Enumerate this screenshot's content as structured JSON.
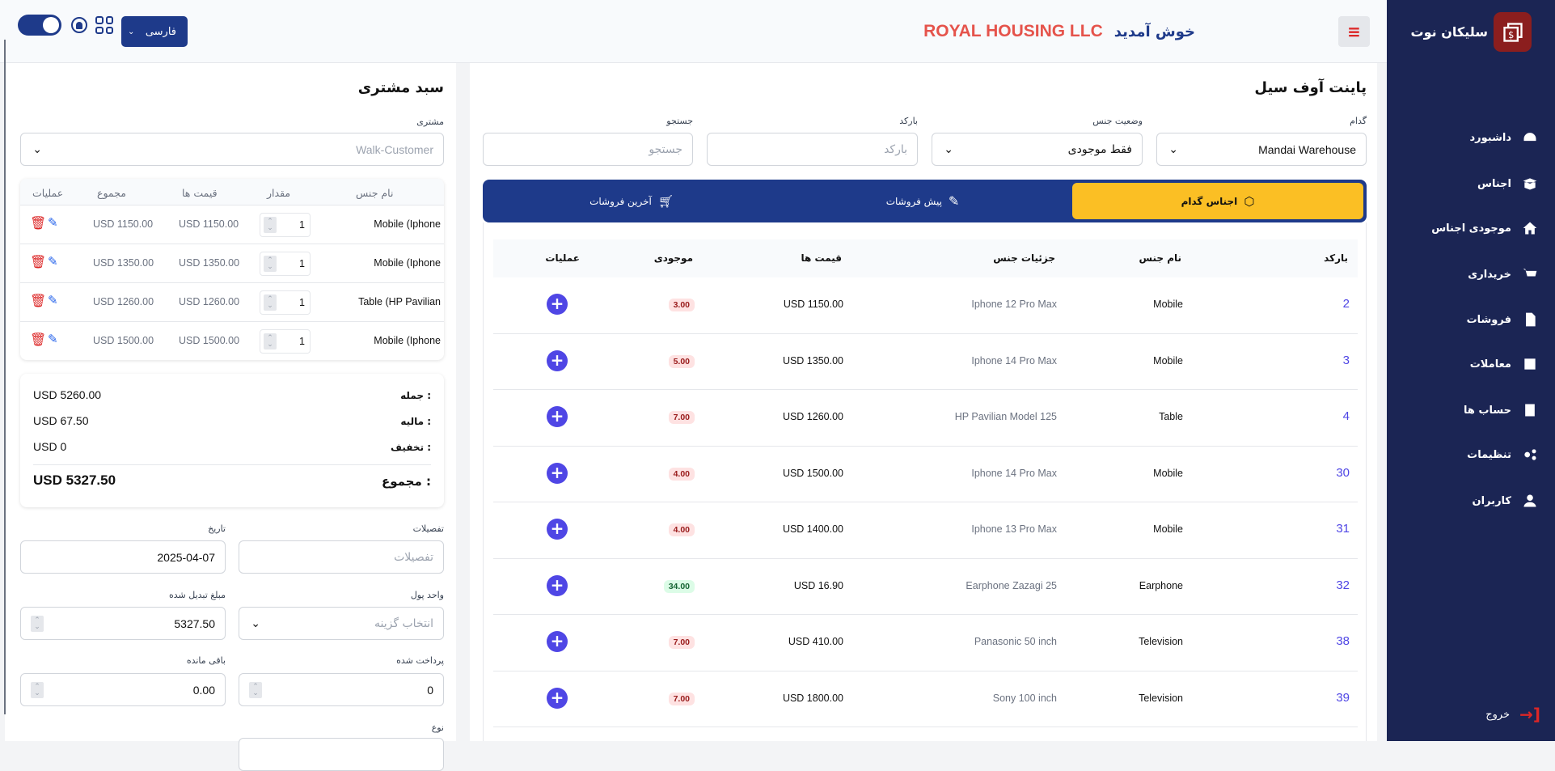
{
  "header": {
    "welcome": "خوش آمدید",
    "company": "ROYAL HOUSING LLC",
    "language": "فارسی"
  },
  "sidebar": {
    "brand": "سلیکان نوت",
    "items": [
      {
        "label": "داشبورد",
        "icon": "dashboard-icon"
      },
      {
        "label": "اجناس",
        "icon": "box-open-icon"
      },
      {
        "label": "موجودی اجناس",
        "icon": "warehouse-icon"
      },
      {
        "label": "خریداری",
        "icon": "cart-icon"
      },
      {
        "label": "فروشات",
        "icon": "invoice-dollar-icon"
      },
      {
        "label": "معاملات",
        "icon": "transaction-icon"
      },
      {
        "label": "حساب ها",
        "icon": "accounts-icon"
      },
      {
        "label": "تنظیمات",
        "icon": "gears-icon"
      },
      {
        "label": "کاربران",
        "icon": "user-icon"
      }
    ],
    "logout": "خروج"
  },
  "cart": {
    "title": "سبد مشتری",
    "customer_label": "مشتری",
    "customer_value": "Walk-Customer",
    "headers": [
      "نام جنس",
      "مقدار",
      "قیمت ها",
      "مجموع",
      "عملیات"
    ],
    "rows": [
      {
        "name": "Mobile (Iphone",
        "qty": "1",
        "price": "USD 1150.00",
        "total": "USD 1150.00"
      },
      {
        "name": "Mobile (Iphone",
        "qty": "1",
        "price": "USD 1350.00",
        "total": "USD 1350.00"
      },
      {
        "name": "Table (HP Pavilian",
        "qty": "1",
        "price": "USD 1260.00",
        "total": "USD 1260.00"
      },
      {
        "name": "Mobile (Iphone",
        "qty": "1",
        "price": "USD 1500.00",
        "total": "USD 1500.00"
      }
    ],
    "summary": {
      "subtotal_label": "جمله :",
      "subtotal": "USD 5260.00",
      "tax_label": "مالیه :",
      "tax": "USD 67.50",
      "discount_label": "تخفیف :",
      "discount": "USD 0",
      "total_label": "مجموع :",
      "total": "USD 5327.50"
    },
    "form": {
      "details_label": "تفصیلات",
      "details_placeholder": "تفصیلات",
      "date_label": "تاریخ",
      "date": "2025-04-07",
      "currency_label": "واحد پول",
      "currency_placeholder": "انتخاب گزینه",
      "converted_label": "مبلغ تبدیل شده",
      "converted": "5327.50",
      "paid_label": "پرداخت شده",
      "paid": "0",
      "remaining_label": "باقی مانده",
      "remaining": "0.00",
      "type_label": "نوع"
    }
  },
  "pos": {
    "title": "پاینت آوف سیل",
    "filters": {
      "warehouse_label": "گدام",
      "warehouse": "Mandai Warehouse",
      "status_label": "وضعیت جنس",
      "status": "فقط موجودی",
      "barcode_label": "بارکد",
      "barcode_placeholder": "بارکد",
      "search_label": "جستجو",
      "search_placeholder": "جستجو"
    },
    "tabs": [
      "اجناس گدام",
      "پیش فروشات",
      "آخرین فروشات"
    ],
    "headers": [
      "بارکد",
      "نام جنس",
      "جزئیات جنس",
      "قیمت ها",
      "موجودی",
      "عملیات"
    ],
    "rows": [
      {
        "barcode": "2",
        "name": "Mobile",
        "details": "Iphone 12 Pro Max",
        "price": "USD 1150.00",
        "stock": "3.00",
        "status": "low"
      },
      {
        "barcode": "3",
        "name": "Mobile",
        "details": "Iphone 14 Pro Max",
        "price": "USD 1350.00",
        "stock": "5.00",
        "status": "low"
      },
      {
        "barcode": "4",
        "name": "Table",
        "details": "HP Pavilian Model 125",
        "price": "USD 1260.00",
        "stock": "7.00",
        "status": "low"
      },
      {
        "barcode": "30",
        "name": "Mobile",
        "details": "Iphone 14 Pro Max",
        "price": "USD 1500.00",
        "stock": "4.00",
        "status": "low"
      },
      {
        "barcode": "31",
        "name": "Mobile",
        "details": "Iphone 13 Pro Max",
        "price": "USD 1400.00",
        "stock": "4.00",
        "status": "low"
      },
      {
        "barcode": "32",
        "name": "Earphone",
        "details": "Earphone Zazagi 25",
        "price": "USD 16.90",
        "stock": "34.00",
        "status": "ok"
      },
      {
        "barcode": "38",
        "name": "Television",
        "details": "Panasonic 50 inch",
        "price": "USD 410.00",
        "stock": "7.00",
        "status": "low"
      },
      {
        "barcode": "39",
        "name": "Television",
        "details": "Sony 100 inch",
        "price": "USD 1800.00",
        "stock": "7.00",
        "status": "low"
      }
    ]
  },
  "colors": {
    "sidebar": "#1b2554",
    "accent": "#1e3a8a",
    "tab_active": "#fbbf24",
    "company": "#e5534b",
    "barcode": "#4f46e5"
  }
}
